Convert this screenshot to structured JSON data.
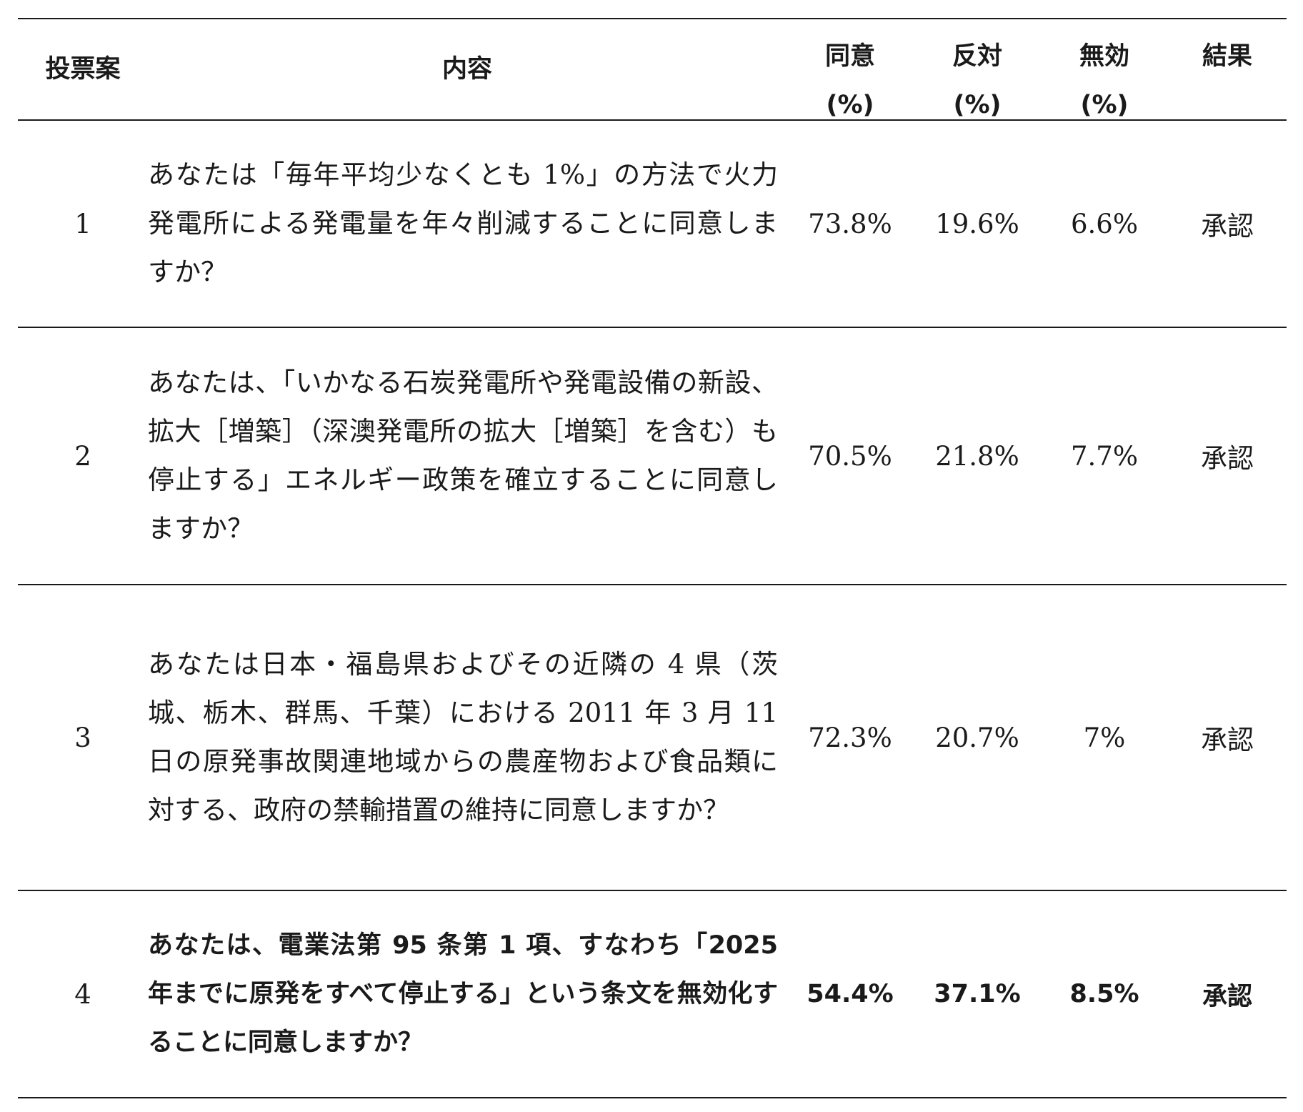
{
  "table": {
    "headers": {
      "proposal": "投票案",
      "content": "内容",
      "agree_line1": "同意",
      "agree_line2": "(%)",
      "oppose_line1": "反対",
      "oppose_line2": "(%)",
      "invalid_line1": "無効",
      "invalid_line2": "(%)",
      "result": "結果"
    },
    "rows": [
      {
        "number": "1",
        "content": "あなたは「毎年平均少なくとも 1%」の方法で火力発電所による発電量を年々削減することに同意しますか？",
        "agree": "73.8%",
        "oppose": "19.6%",
        "invalid": "6.6%",
        "result": "承認"
      },
      {
        "number": "2",
        "content": "あなたは、「いかなる石炭発電所や発電設備の新設、拡大［増築］（深澳発電所の拡大［増築］を含む）も停止する」エネルギー政策を確立することに同意しますか？",
        "agree": "70.5%",
        "oppose": "21.8%",
        "invalid": "7.7%",
        "result": "承認"
      },
      {
        "number": "3",
        "content": "あなたは日本・福島県およびその近隣の 4 県（茨城、栃木、群馬、千葉）における 2011 年 3 月 11 日の原発事故関連地域からの農産物および食品類に対する、政府の禁輸措置の維持に同意しますか？",
        "agree": "72.3%",
        "oppose": "20.7%",
        "invalid": "7%",
        "result": "承認"
      },
      {
        "number": "4",
        "content": "あなたは、電業法第 95 条第 1 項、すなわち「2025 年までに原発をすべて停止する」という条文を無効化することに同意しますか？",
        "agree": "54.4%",
        "oppose": "37.1%",
        "invalid": "8.5%",
        "result": "承認"
      }
    ]
  }
}
